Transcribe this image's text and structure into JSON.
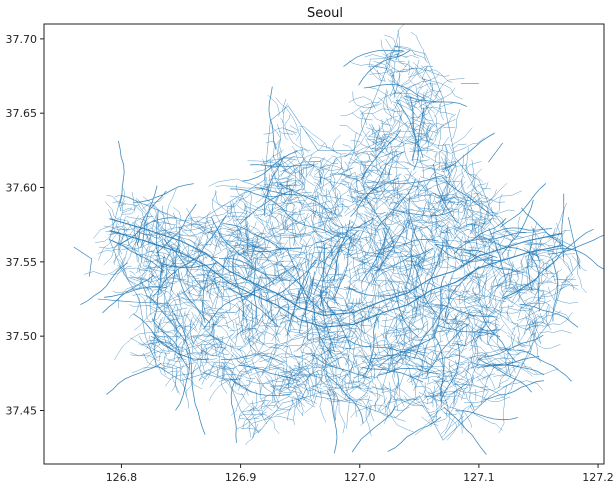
{
  "chart_data": {
    "type": "map",
    "title": "Seoul",
    "xlabel": "",
    "ylabel": "",
    "xlim": [
      126.735,
      127.205
    ],
    "ylim": [
      37.414,
      37.71
    ],
    "x_ticks": [
      126.8,
      126.9,
      127.0,
      127.1,
      127.2
    ],
    "x_tick_labels": [
      "126.8",
      "126.9",
      "127.0",
      "127.1",
      "127.2"
    ],
    "y_ticks": [
      37.45,
      37.5,
      37.55,
      37.6,
      37.65,
      37.7
    ],
    "y_tick_labels": [
      "37.45",
      "37.50",
      "37.55",
      "37.60",
      "37.65",
      "37.70"
    ],
    "grid": false,
    "network_color": "#1f77b4",
    "boundary_outline": [
      [
        126.8,
        37.595
      ],
      [
        126.83,
        37.585
      ],
      [
        126.86,
        37.575
      ],
      [
        126.88,
        37.585
      ],
      [
        126.92,
        37.605
      ],
      [
        126.925,
        37.645
      ],
      [
        126.94,
        37.655
      ],
      [
        126.965,
        37.625
      ],
      [
        126.995,
        37.625
      ],
      [
        127.02,
        37.675
      ],
      [
        127.03,
        37.695
      ],
      [
        127.055,
        37.69
      ],
      [
        127.07,
        37.66
      ],
      [
        127.08,
        37.62
      ],
      [
        127.09,
        37.61
      ],
      [
        127.1,
        37.605
      ],
      [
        127.11,
        37.585
      ],
      [
        127.13,
        37.565
      ],
      [
        127.155,
        37.57
      ],
      [
        127.18,
        37.56
      ],
      [
        127.185,
        37.55
      ],
      [
        127.17,
        37.535
      ],
      [
        127.16,
        37.51
      ],
      [
        127.145,
        37.495
      ],
      [
        127.13,
        37.47
      ],
      [
        127.11,
        37.46
      ],
      [
        127.09,
        37.445
      ],
      [
        127.07,
        37.43
      ],
      [
        127.05,
        37.46
      ],
      [
        127.03,
        37.445
      ],
      [
        126.995,
        37.455
      ],
      [
        126.96,
        37.46
      ],
      [
        126.935,
        37.455
      ],
      [
        126.915,
        37.435
      ],
      [
        126.9,
        37.45
      ],
      [
        126.89,
        37.47
      ],
      [
        126.87,
        37.475
      ],
      [
        126.85,
        37.47
      ],
      [
        126.83,
        37.48
      ],
      [
        126.82,
        37.5
      ],
      [
        126.815,
        37.525
      ],
      [
        126.8,
        37.545
      ],
      [
        126.79,
        37.565
      ],
      [
        126.795,
        37.58
      ]
    ],
    "river_path": [
      [
        126.79,
        37.575
      ],
      [
        126.82,
        37.568
      ],
      [
        126.85,
        37.56
      ],
      [
        126.87,
        37.552
      ],
      [
        126.89,
        37.54
      ],
      [
        126.91,
        37.532
      ],
      [
        126.93,
        37.525
      ],
      [
        126.95,
        37.515
      ],
      [
        126.97,
        37.51
      ],
      [
        126.995,
        37.512
      ],
      [
        127.02,
        37.52
      ],
      [
        127.04,
        37.525
      ],
      [
        127.06,
        37.535
      ],
      [
        127.08,
        37.54
      ],
      [
        127.1,
        37.55
      ],
      [
        127.12,
        37.555
      ],
      [
        127.14,
        37.56
      ],
      [
        127.17,
        37.565
      ]
    ],
    "outlier_segments": [
      [
        [
          126.76,
          37.56
        ],
        [
          126.775,
          37.552
        ],
        [
          126.773,
          37.54
        ]
      ],
      [
        [
          126.78,
          37.525
        ],
        [
          126.81,
          37.523
        ],
        [
          126.84,
          37.522
        ]
      ],
      [
        [
          127.085,
          37.67
        ],
        [
          127.1,
          37.67
        ]
      ],
      [
        [
          127.108,
          37.617
        ],
        [
          127.12,
          37.63
        ]
      ],
      [
        [
          127.175,
          37.58
        ],
        [
          127.185,
          37.545
        ]
      ]
    ]
  }
}
